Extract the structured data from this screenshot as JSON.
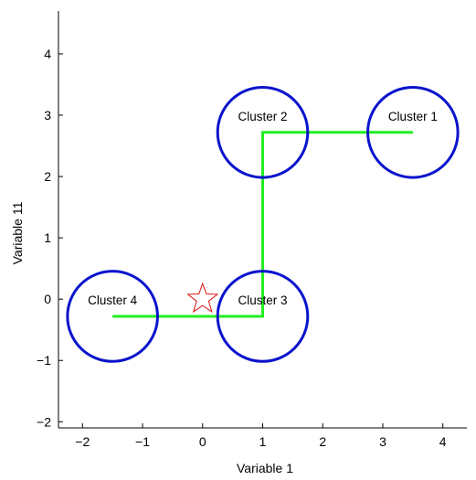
{
  "chart_data": {
    "type": "scatter",
    "xlabel": "Variable 1",
    "ylabel": "Variable 11",
    "xlim": [
      -2.4,
      4.4
    ],
    "ylim": [
      -2.1,
      4.7
    ],
    "xticks": [
      -2,
      -1,
      0,
      1,
      2,
      3,
      4
    ],
    "yticks": [
      -2,
      -1,
      0,
      1,
      2,
      3,
      4
    ],
    "xtick_labels": [
      "−2",
      "−1",
      "0",
      "1",
      "2",
      "3",
      "4"
    ],
    "ytick_labels": [
      "−2",
      "−1",
      "0",
      "1",
      "2",
      "3",
      "4"
    ],
    "grid": false,
    "clusters": [
      {
        "label": "Cluster 1",
        "x": 3.5,
        "y": 2.72,
        "radius": 0.75
      },
      {
        "label": "Cluster 2",
        "x": 1.0,
        "y": 2.72,
        "radius": 0.75
      },
      {
        "label": "Cluster 3",
        "x": 1.0,
        "y": -0.28,
        "radius": 0.75
      },
      {
        "label": "Cluster 4",
        "x": -1.5,
        "y": -0.28,
        "radius": 0.75
      }
    ],
    "path": [
      {
        "x": 3.5,
        "y": 2.72
      },
      {
        "x": 1.0,
        "y": 2.72
      },
      {
        "x": 1.0,
        "y": -0.28
      },
      {
        "x": -1.5,
        "y": -0.28
      }
    ],
    "marker": {
      "shape": "star",
      "x": 0.0,
      "y": 0.0
    },
    "colors": {
      "circle": "#0a14cc",
      "path": "#22ee22",
      "marker": "#dd1111",
      "axis": "#000000"
    }
  }
}
